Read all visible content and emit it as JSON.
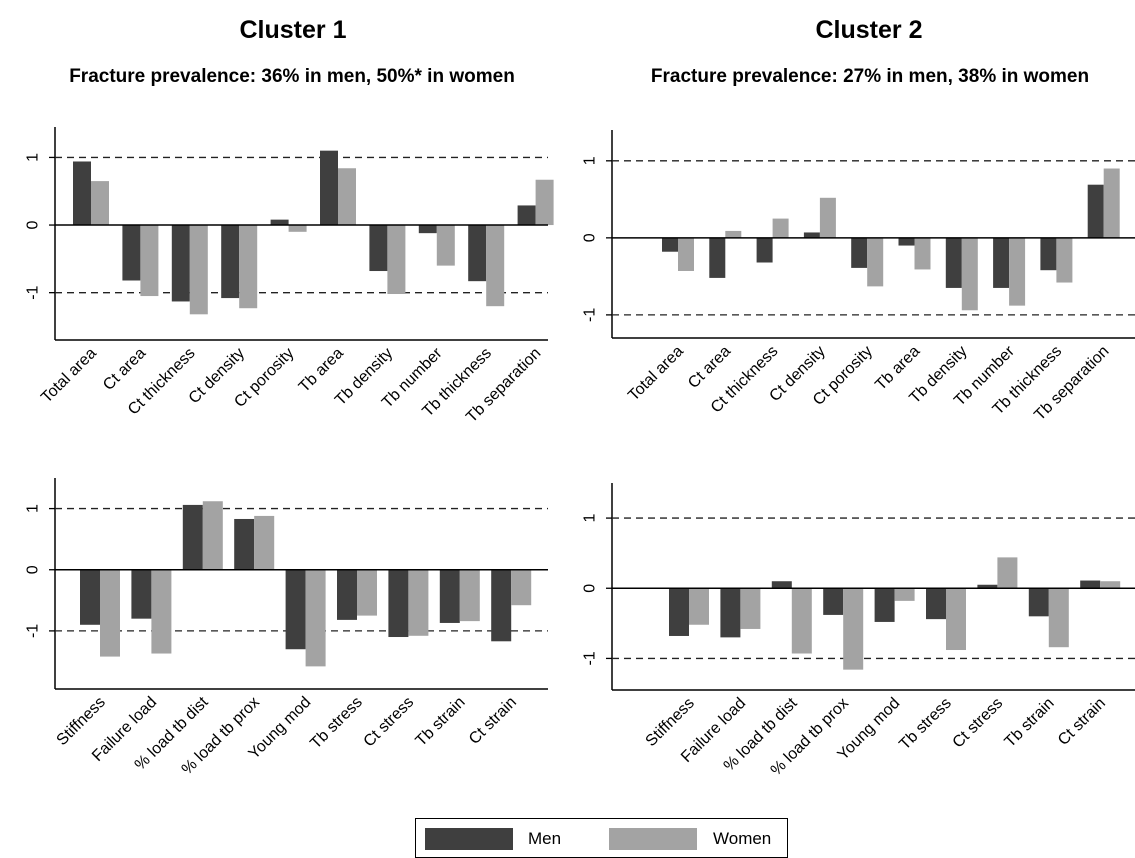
{
  "colors": {
    "men": "#3f3f3f",
    "women": "#a3a3a3"
  },
  "legend": {
    "men_label": "Men",
    "women_label": "Women"
  },
  "clusters": [
    {
      "title": "Cluster 1",
      "subtitle": "Fracture prevalence: 36% in men, 50%* in women"
    },
    {
      "title": "Cluster 2",
      "subtitle": "Fracture prevalence: 27% in men, 38% in women"
    }
  ],
  "chart_data": [
    {
      "type": "bar",
      "cluster": "Cluster 1",
      "categories": [
        "Total area",
        "Ct area",
        "Ct thickness",
        "Ct density",
        "Ct porosity",
        "Tb area",
        "Tb density",
        "Tb number",
        "Tb thickness",
        "Tb separation"
      ],
      "series": [
        {
          "name": "Men",
          "values": [
            0.94,
            -0.82,
            -1.13,
            -1.08,
            0.08,
            1.1,
            -0.68,
            -0.12,
            -0.83,
            0.29
          ]
        },
        {
          "name": "Women",
          "values": [
            0.65,
            -1.05,
            -1.32,
            -1.23,
            -0.1,
            0.84,
            -1.02,
            -0.6,
            -1.2,
            0.67
          ]
        }
      ],
      "yticks": [
        "-1",
        "0",
        "1"
      ],
      "ylim": [
        -1.7,
        1.45
      ],
      "reference_lines": [
        1,
        -1
      ]
    },
    {
      "type": "bar",
      "cluster": "Cluster 2",
      "categories": [
        "Total area",
        "Ct area",
        "Ct thickness",
        "Ct density",
        "Ct porosity",
        "Tb area",
        "Tb density",
        "Tb number",
        "Tb thickness",
        "Tb separation"
      ],
      "series": [
        {
          "name": "Men",
          "values": [
            -0.18,
            -0.52,
            -0.32,
            0.07,
            -0.39,
            -0.1,
            -0.65,
            -0.65,
            -0.42,
            0.69
          ]
        },
        {
          "name": "Women",
          "values": [
            -0.43,
            0.09,
            0.25,
            0.52,
            -0.63,
            -0.41,
            -0.94,
            -0.88,
            -0.58,
            0.9
          ]
        }
      ],
      "yticks": [
        "-1",
        "0",
        "1"
      ],
      "ylim": [
        -1.3,
        1.4
      ],
      "reference_lines": [
        1,
        -1
      ]
    },
    {
      "type": "bar",
      "cluster": "Cluster 1",
      "categories": [
        "Stiffness",
        "Failure load",
        "% load tb dist",
        "% load tb prox",
        "Young mod",
        "Tb stress",
        "Ct stress",
        "Tb strain",
        "Ct strain"
      ],
      "series": [
        {
          "name": "Men",
          "values": [
            -0.9,
            -0.8,
            1.06,
            0.83,
            -1.3,
            -0.82,
            -1.1,
            -0.87,
            -1.17
          ]
        },
        {
          "name": "Women",
          "values": [
            -1.42,
            -1.37,
            1.12,
            0.88,
            -1.58,
            -0.75,
            -1.08,
            -0.84,
            -0.58
          ]
        }
      ],
      "yticks": [
        "-1",
        "0",
        "1"
      ],
      "ylim": [
        -1.95,
        1.5
      ],
      "reference_lines": [
        1,
        -1
      ]
    },
    {
      "type": "bar",
      "cluster": "Cluster 2",
      "categories": [
        "Stiffness",
        "Failure load",
        "% load tb dist",
        "% load tb prox",
        "Young mod",
        "Tb stress",
        "Ct stress",
        "Tb strain",
        "Ct strain"
      ],
      "series": [
        {
          "name": "Men",
          "values": [
            -0.68,
            -0.7,
            0.1,
            -0.38,
            -0.48,
            -0.44,
            0.05,
            -0.4,
            0.11
          ]
        },
        {
          "name": "Women",
          "values": [
            -0.52,
            -0.58,
            -0.93,
            -1.16,
            -0.18,
            -0.88,
            0.44,
            -0.84,
            0.1
          ]
        }
      ],
      "yticks": [
        "-1",
        "0",
        "1"
      ],
      "ylim": [
        -1.45,
        1.5
      ],
      "reference_lines": [
        1,
        -1
      ]
    }
  ]
}
